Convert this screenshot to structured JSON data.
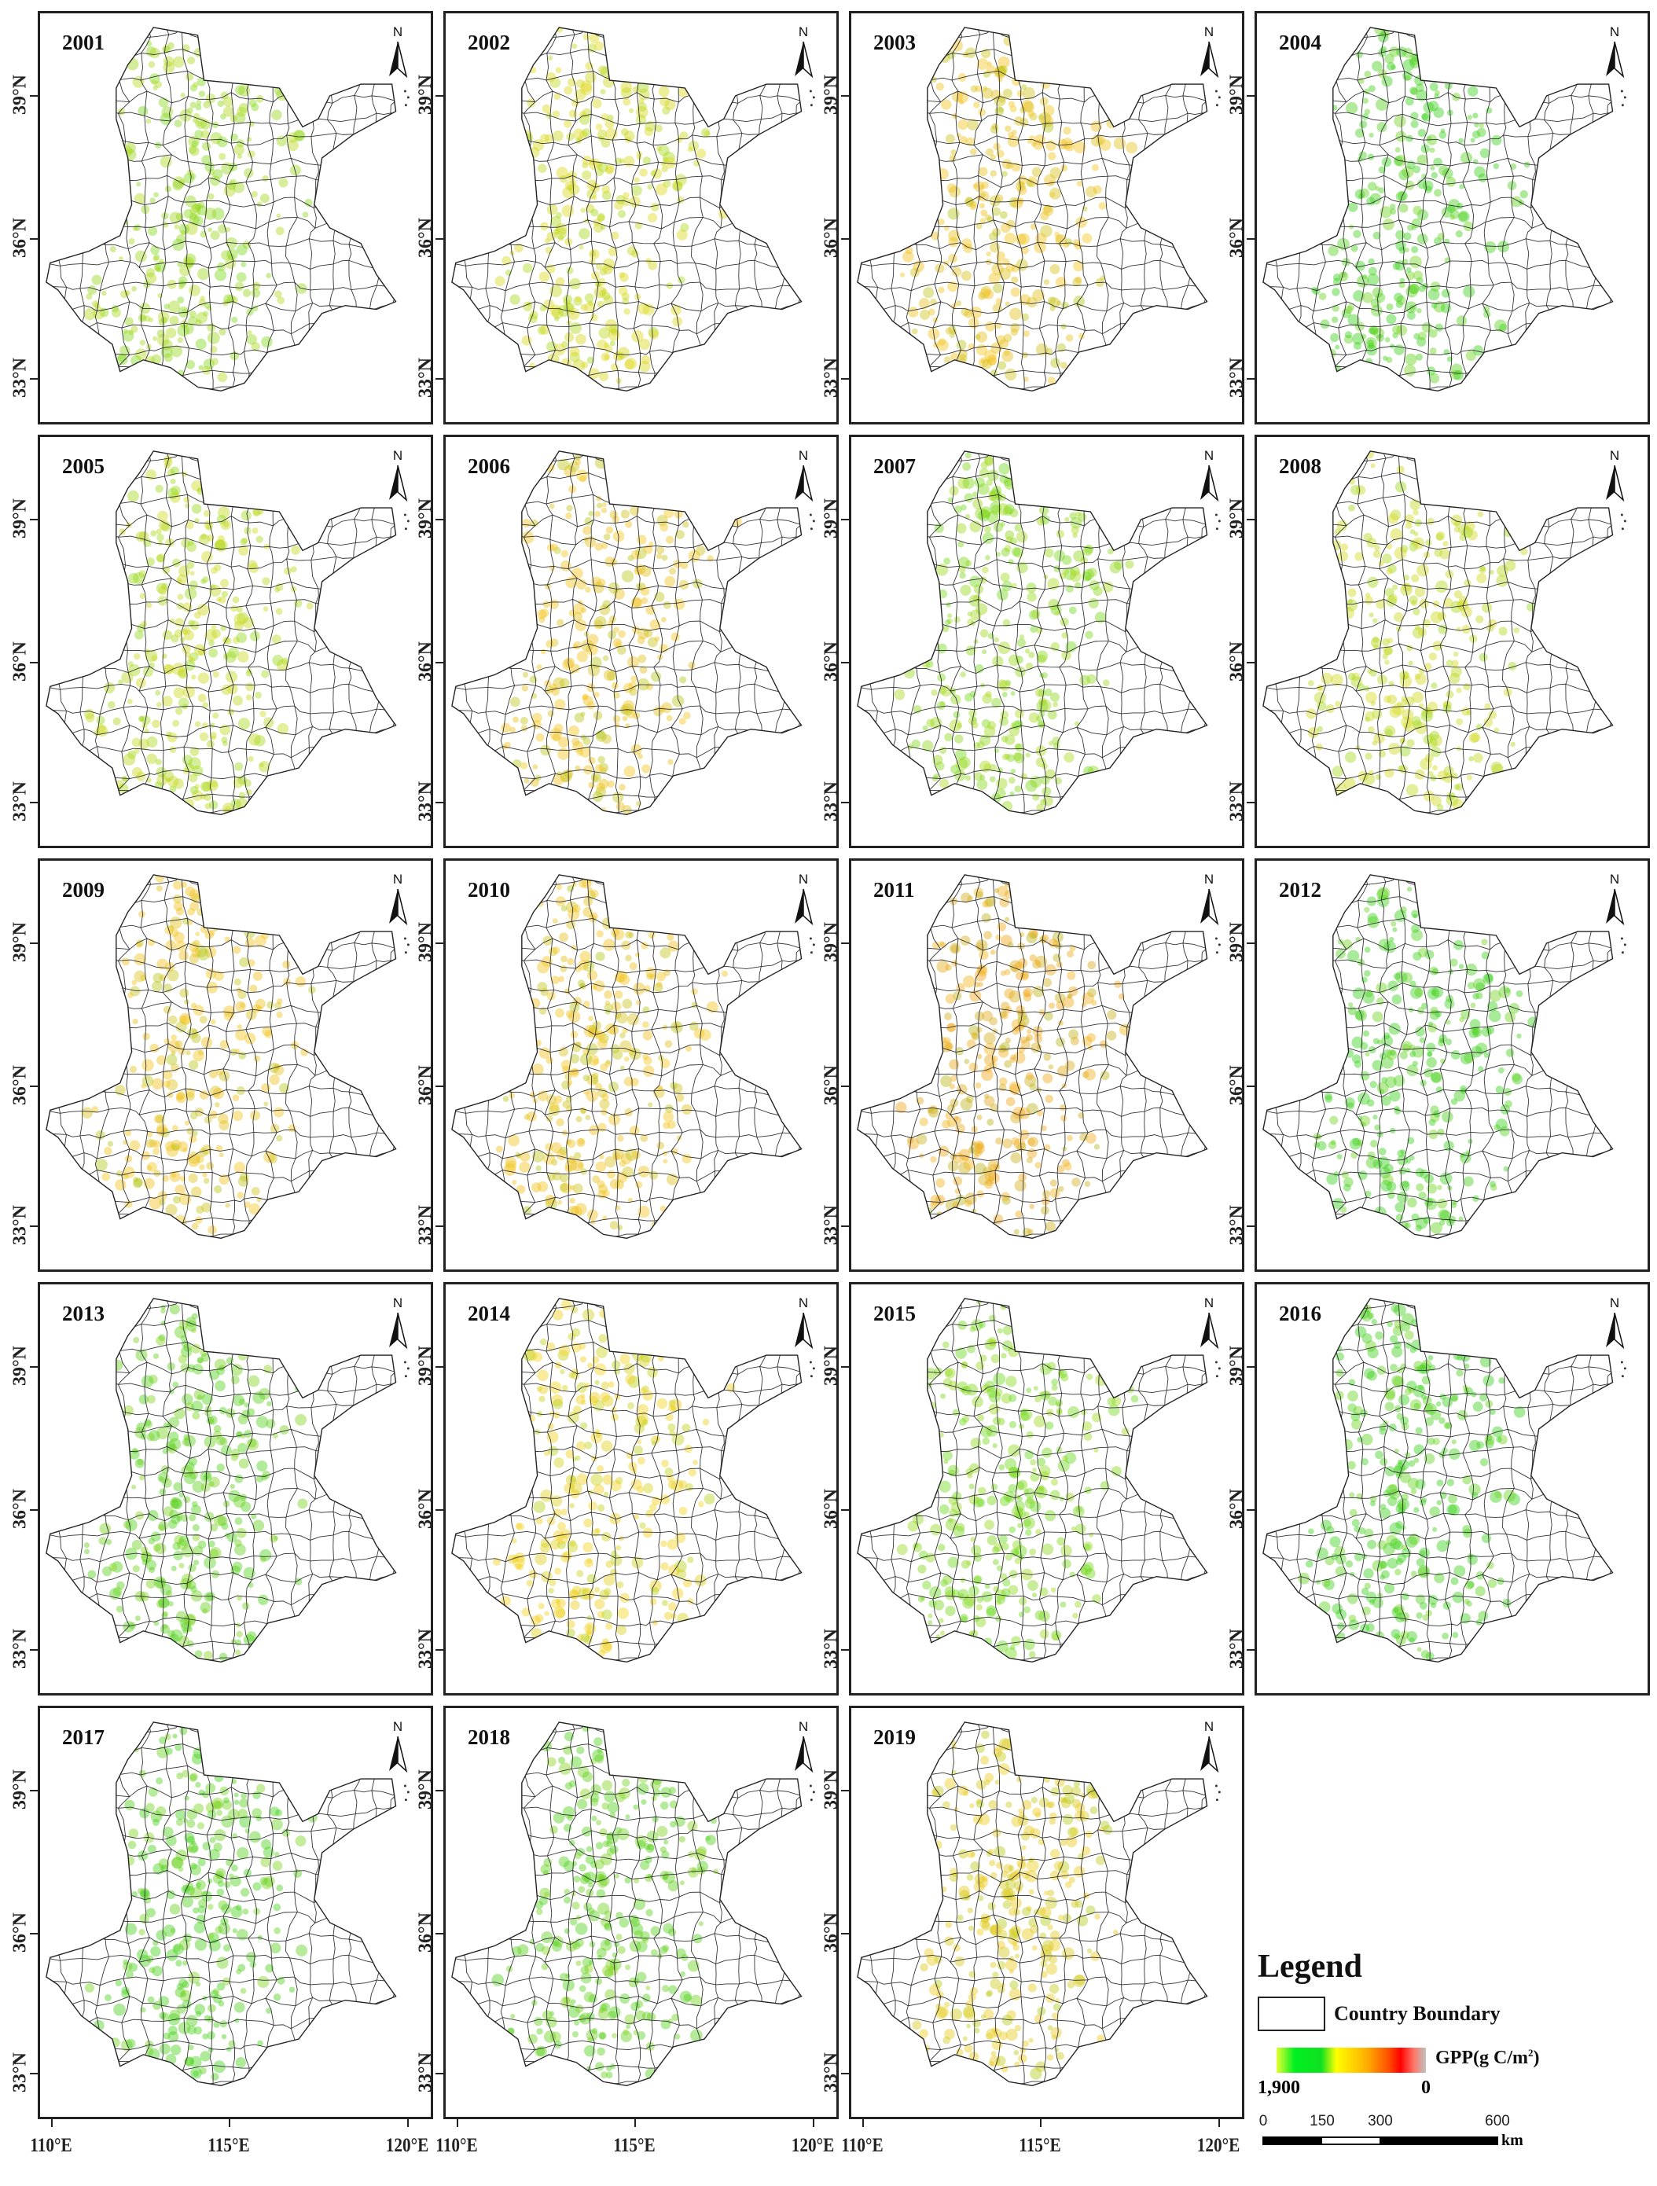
{
  "panels": [
    {
      "year": "2001",
      "tone": "#9fd822"
    },
    {
      "year": "2002",
      "tone": "#d8d820"
    },
    {
      "year": "2003",
      "tone": "#f0c020"
    },
    {
      "year": "2004",
      "tone": "#40d020"
    },
    {
      "year": "2005",
      "tone": "#c0d820"
    },
    {
      "year": "2006",
      "tone": "#f0c020"
    },
    {
      "year": "2007",
      "tone": "#90d820"
    },
    {
      "year": "2008",
      "tone": "#c8d820"
    },
    {
      "year": "2009",
      "tone": "#f0c020"
    },
    {
      "year": "2010",
      "tone": "#f0c020"
    },
    {
      "year": "2011",
      "tone": "#f0a820"
    },
    {
      "year": "2012",
      "tone": "#40d020"
    },
    {
      "year": "2013",
      "tone": "#60d020"
    },
    {
      "year": "2014",
      "tone": "#f0d020"
    },
    {
      "year": "2015",
      "tone": "#80d820"
    },
    {
      "year": "2016",
      "tone": "#40d020"
    },
    {
      "year": "2017",
      "tone": "#50d020"
    },
    {
      "year": "2018",
      "tone": "#60d020"
    },
    {
      "year": "2019",
      "tone": "#e8c820"
    }
  ],
  "north_label": "N",
  "lat_labels": [
    "39°N",
    "36°N",
    "33°N"
  ],
  "lon_labels": [
    "110°E",
    "115°E",
    "120°E"
  ],
  "legend": {
    "title": "Legend",
    "boundary_label": "Country Boundary",
    "gpp_label": "GPP(g C/m",
    "gpp_sup": "2",
    "gpp_close": ")",
    "colorbar_min": "1,900",
    "colorbar_max": "0",
    "colorbar_colors": [
      "#e8ff30",
      "#00f020",
      "#ffff00",
      "#ffb000",
      "#ff0000",
      "#c0c0c0"
    ],
    "scale_ticks": [
      "0",
      "150",
      "300",
      "600"
    ],
    "scale_unit": "km"
  }
}
